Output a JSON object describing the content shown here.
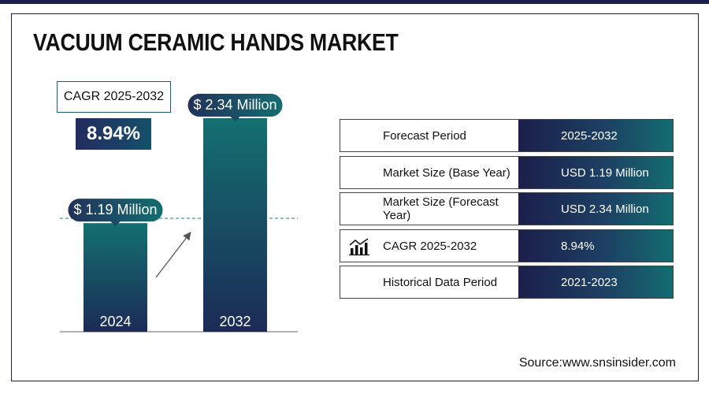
{
  "title": "VACUUM CERAMIC HANDS MARKET",
  "cagr": {
    "label": "CAGR 2025-2032",
    "value": "8.94%"
  },
  "chart_data": {
    "type": "bar",
    "categories": [
      "2024",
      "2032"
    ],
    "values": [
      1.19,
      2.34
    ],
    "value_labels": [
      "$ 1.19 Million",
      "$ 2.34 Million"
    ],
    "title": "",
    "xlabel": "",
    "ylabel": "",
    "grid": false
  },
  "table": {
    "rows": [
      {
        "key": "Forecast Period",
        "value": "2025-2032"
      },
      {
        "key": "Market Size (Base Year)",
        "value": "USD 1.19 Million"
      },
      {
        "key": "Market Size (Forecast Year)",
        "value": "USD 2.34 Million"
      },
      {
        "key": "CAGR 2025-2032",
        "value": "8.94%",
        "icon": "bar-chart-growth-icon"
      },
      {
        "key": "Historical Data Period",
        "value": "2021-2023"
      }
    ]
  },
  "source": "Source:www.snsinsider.com",
  "colors": {
    "navy": "#1c1f4a",
    "teal": "#136c70",
    "dark_slate": "#263a4e"
  }
}
